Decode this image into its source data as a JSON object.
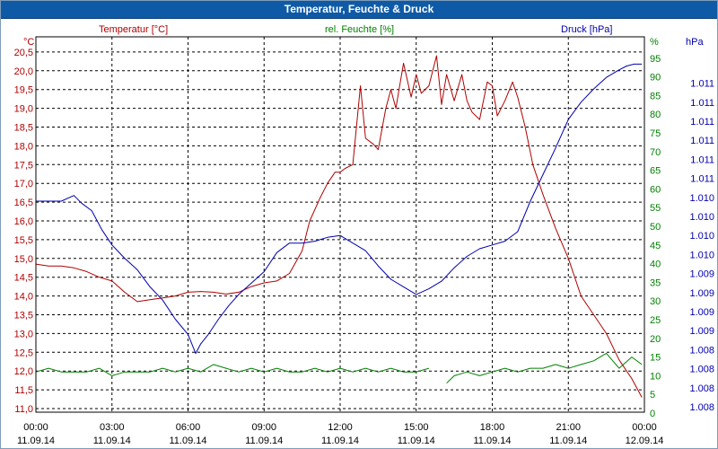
{
  "window": {
    "title": "Temperatur, Feuchte & Druck"
  },
  "chart_data": {
    "type": "line",
    "title": "Temperatur, Feuchte & Druck",
    "x": [
      "00:00",
      "03:00",
      "06:00",
      "09:00",
      "12:00",
      "15:00",
      "18:00",
      "21:00",
      "00:00"
    ],
    "x_dates": [
      "11.09.14",
      "11.09.14",
      "11.09.14",
      "11.09.14",
      "11.09.14",
      "11.09.14",
      "11.09.14",
      "11.09.14",
      "12.09.14"
    ],
    "xlim_hours": [
      0,
      24
    ],
    "colors": {
      "temperature": "#b00000",
      "humidity": "#008000",
      "pressure": "#0000b0"
    },
    "axes": {
      "left": {
        "unit": "°C",
        "range": [
          11.0,
          20.5
        ],
        "ticks": [
          "11,0",
          "11,5",
          "12,0",
          "12,5",
          "13,0",
          "13,5",
          "14,0",
          "14,5",
          "15,0",
          "15,5",
          "16,0",
          "16,5",
          "17,0",
          "17,5",
          "18,0",
          "18,5",
          "19,0",
          "19,5",
          "20,0",
          "20,5"
        ]
      },
      "right1": {
        "unit": "%",
        "range": [
          0,
          97
        ],
        "ticks": [
          "0",
          "5",
          "10",
          "15",
          "20",
          "25",
          "30",
          "35",
          "40",
          "45",
          "50",
          "55",
          "60",
          "65",
          "70",
          "75",
          "80",
          "85",
          "90",
          "95"
        ]
      },
      "right2": {
        "unit": "hPa",
        "range": [
          0,
          18
        ],
        "ticks": [
          "1.008",
          "1.008",
          "1.008",
          "1.008",
          "1.009",
          "1.009",
          "1.009",
          "1.009",
          "1.010",
          "1.010",
          "1.010",
          "1.010",
          "1.011",
          "1.011",
          "1.011",
          "1.011",
          "1.011",
          "1.011"
        ]
      }
    },
    "series": [
      {
        "name": "Temperatur [°C]",
        "axis": "left",
        "x": [
          0,
          0.5,
          1,
          1.5,
          2,
          2.5,
          3,
          3.5,
          4,
          4.5,
          5,
          5.5,
          6,
          6.5,
          7,
          7.5,
          8,
          8.5,
          9,
          9.5,
          10,
          10.5,
          10.8,
          11.2,
          11.5,
          11.8,
          12.0,
          12.2,
          12.5,
          12.8,
          13.0,
          13.3,
          13.5,
          13.8,
          14.0,
          14.2,
          14.5,
          14.8,
          15.0,
          15.2,
          15.5,
          15.8,
          16.0,
          16.2,
          16.5,
          16.8,
          17.0,
          17.2,
          17.5,
          17.8,
          18.0,
          18.2,
          18.5,
          18.8,
          19.0,
          19.3,
          19.6,
          20.0,
          20.5,
          21.0,
          21.5,
          22.0,
          22.5,
          23.0,
          23.5,
          23.9
        ],
        "values": [
          14.85,
          14.8,
          14.8,
          14.75,
          14.65,
          14.5,
          14.4,
          14.1,
          13.85,
          13.9,
          13.95,
          14.0,
          14.1,
          14.12,
          14.1,
          14.05,
          14.1,
          14.25,
          14.35,
          14.4,
          14.6,
          15.2,
          16.0,
          16.6,
          17.0,
          17.3,
          17.3,
          17.4,
          17.5,
          19.6,
          18.2,
          18.05,
          17.9,
          19.0,
          19.5,
          19.0,
          20.2,
          19.3,
          19.9,
          19.4,
          19.6,
          20.4,
          19.1,
          19.9,
          19.2,
          19.9,
          19.2,
          18.9,
          18.7,
          19.7,
          19.6,
          18.8,
          19.2,
          19.7,
          19.3,
          18.5,
          17.5,
          16.7,
          15.8,
          15.0,
          14.0,
          13.5,
          13.0,
          12.3,
          11.8,
          11.3
        ]
      },
      {
        "name": "rel. Feuchte [%]",
        "axis": "right1",
        "x": [
          0,
          0.5,
          1,
          1.5,
          2,
          2.5,
          3,
          3.5,
          4,
          4.5,
          5,
          5.5,
          6,
          6.5,
          7,
          7.5,
          8,
          8.5,
          9,
          9.5,
          10,
          10.5,
          11,
          11.5,
          12,
          12.5,
          13,
          13.5,
          14,
          14.5,
          15,
          15.5,
          null,
          16.2,
          16.5,
          17,
          17.5,
          18,
          18.5,
          19,
          19.5,
          20,
          20.5,
          21,
          21.5,
          22,
          22.5,
          23,
          23.5,
          23.9
        ],
        "values": [
          11,
          12,
          11,
          11,
          11,
          12,
          10,
          11,
          11,
          11,
          12,
          11,
          12,
          11,
          13,
          12,
          11,
          12,
          11,
          12,
          11,
          11,
          12,
          11,
          12,
          11,
          12,
          11,
          12,
          11,
          11,
          12,
          null,
          8,
          10,
          11,
          10,
          11,
          12,
          11,
          12,
          12,
          13,
          12,
          13,
          14,
          16,
          12,
          15,
          13
        ]
      },
      {
        "name": "Druck [hPa]",
        "axis": "right2",
        "x": [
          0,
          1.0,
          1.5,
          1.8,
          2.2,
          2.6,
          3.0,
          3.5,
          4.0,
          4.5,
          5.0,
          5.5,
          6.0,
          6.3,
          6.5,
          6.8,
          7.2,
          7.6,
          8.0,
          8.5,
          9.0,
          9.5,
          10.0,
          10.5,
          11.0,
          11.5,
          12.0,
          12.5,
          13.0,
          13.5,
          14.0,
          14.5,
          15.0,
          15.5,
          16.0,
          16.5,
          17.0,
          17.5,
          18.0,
          18.5,
          19.0,
          19.5,
          20.0,
          20.5,
          21.0,
          21.5,
          22.0,
          22.5,
          23.0,
          23.3,
          23.6,
          23.9
        ],
        "values": [
          10.8,
          10.8,
          11.1,
          10.7,
          10.3,
          9.3,
          8.5,
          7.8,
          7.2,
          6.3,
          5.6,
          4.6,
          3.8,
          2.8,
          3.3,
          3.8,
          4.6,
          5.3,
          5.9,
          6.5,
          7.1,
          8.1,
          8.6,
          8.6,
          8.7,
          8.9,
          9.0,
          8.6,
          8.2,
          7.4,
          6.7,
          6.3,
          5.9,
          6.2,
          6.6,
          7.3,
          7.9,
          8.3,
          8.5,
          8.7,
          9.2,
          10.8,
          12.2,
          13.6,
          15.1,
          16.0,
          16.7,
          17.3,
          17.7,
          17.9,
          18.0,
          18.0
        ]
      }
    ]
  }
}
